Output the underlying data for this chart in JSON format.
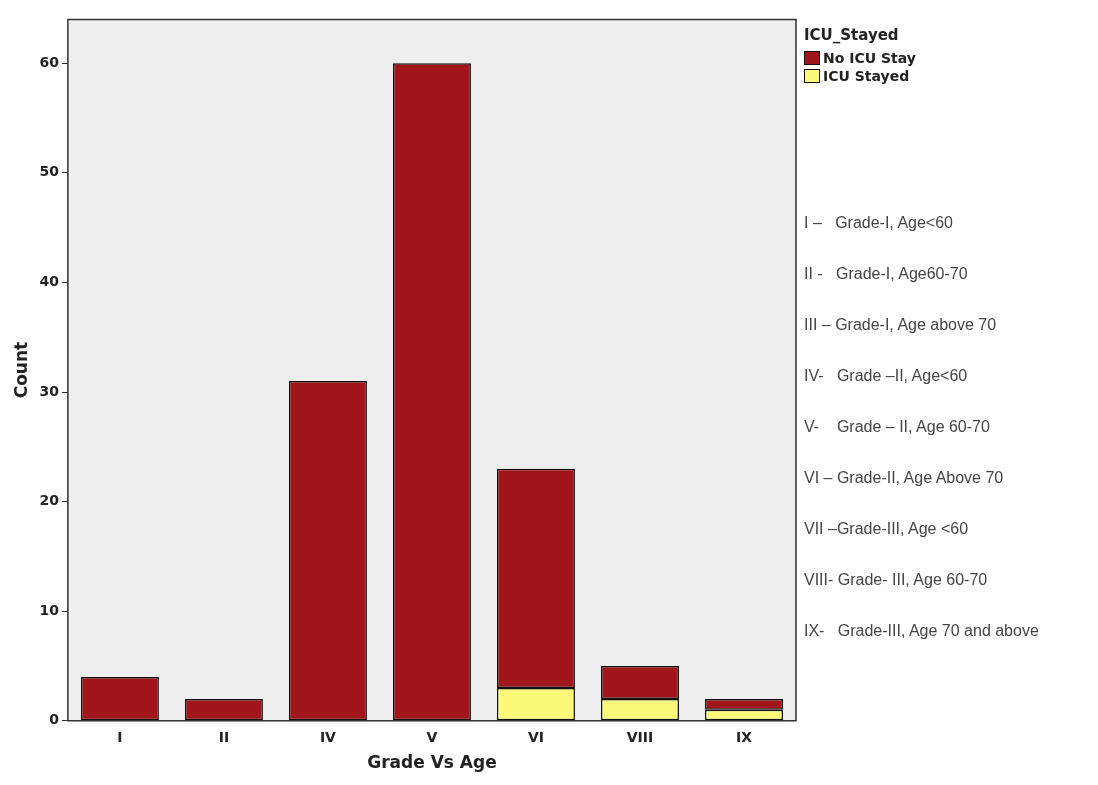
{
  "chart_data": {
    "type": "bar",
    "xlabel": "Grade Vs Age",
    "ylabel": "Count",
    "legend_title": "ICU_Stayed",
    "categories": [
      "I",
      "II",
      "IV",
      "V",
      "VI",
      "VIII",
      "IX"
    ],
    "stacked": true,
    "ylim": [
      0,
      64
    ],
    "yticks": [
      0,
      10,
      20,
      30,
      40,
      50,
      60
    ],
    "grid": false,
    "legend": "top right",
    "series": [
      {
        "name": "ICU Stayed",
        "color": "#fbf87a",
        "values": [
          0,
          0,
          0,
          0,
          3,
          2,
          1
        ]
      },
      {
        "name": "No ICU Stay",
        "color": "#a0161a",
        "values": [
          4,
          2,
          31,
          60,
          20,
          3,
          1
        ]
      }
    ],
    "annotations": [
      "I –   Grade-I, Age<60",
      "II -   Grade-I, Age60-70",
      "III – Grade-I, Age above 70",
      "IV-   Grade –II, Age<60",
      "V-    Grade – II, Age 60-70",
      "VI – Grade-II, Age Above 70",
      "VII –Grade-III, Age <60",
      "VIII- Grade- III, Age 60-70",
      "IX-   Grade-III, Age 70 and above"
    ]
  }
}
